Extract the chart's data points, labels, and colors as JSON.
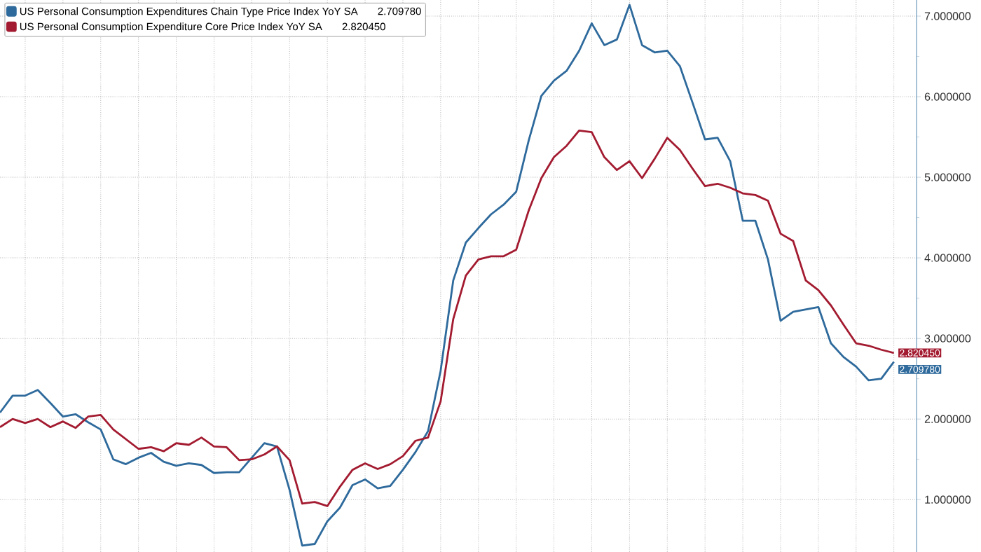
{
  "chart_data": {
    "type": "line",
    "categories": [
      null,
      null,
      null,
      null,
      null,
      null,
      null,
      null,
      null,
      null,
      null,
      null,
      null,
      null,
      null,
      null,
      null,
      null,
      null,
      null,
      null,
      null,
      null,
      null,
      null,
      null,
      null,
      null,
      null,
      null,
      null,
      null,
      null,
      null,
      null,
      null,
      null,
      null,
      null,
      null,
      null,
      null,
      null,
      null,
      null,
      null,
      null,
      null,
      null,
      null,
      null,
      null,
      null,
      null,
      null,
      null,
      null,
      null,
      null,
      null,
      null,
      null,
      null,
      null,
      null,
      null,
      null,
      null,
      null,
      null,
      null,
      null
    ],
    "series": [
      {
        "name": "US Personal Consumption Expenditures Chain Type Price Index YoY SA",
        "color": "#2e6a9c",
        "values": [
          2.08,
          2.29,
          2.29,
          2.36,
          2.2,
          2.03,
          2.06,
          1.96,
          1.87,
          1.5,
          1.44,
          1.52,
          1.58,
          1.47,
          1.42,
          1.45,
          1.43,
          1.33,
          1.34,
          1.34,
          1.52,
          1.7,
          1.66,
          1.12,
          0.43,
          0.45,
          0.73,
          0.9,
          1.18,
          1.25,
          1.14,
          1.17,
          1.37,
          1.59,
          1.85,
          2.6,
          3.72,
          4.19,
          4.37,
          4.54,
          4.66,
          4.82,
          5.46,
          6.01,
          6.2,
          6.32,
          6.57,
          6.91,
          6.64,
          6.71,
          7.14,
          6.64,
          6.55,
          6.57,
          6.38,
          5.93,
          5.47,
          5.49,
          5.2,
          4.46,
          4.46,
          3.98,
          3.22,
          3.33,
          3.36,
          3.39,
          2.94,
          2.77,
          2.65,
          2.48,
          2.5,
          2.70978
        ],
        "value_labels": [
          null,
          null,
          null,
          null,
          null,
          null,
          null,
          null,
          null,
          null,
          null,
          null,
          null,
          null,
          null,
          null,
          null,
          null,
          null,
          null,
          null,
          null,
          null,
          null,
          null,
          null,
          null,
          null,
          null,
          null,
          null,
          null,
          null,
          null,
          null,
          null,
          null,
          null,
          null,
          null,
          null,
          null,
          null,
          null,
          null,
          null,
          null,
          null,
          null,
          null,
          null,
          null,
          null,
          null,
          null,
          null,
          null,
          null,
          null,
          null,
          null,
          null,
          null,
          null,
          null,
          null,
          null,
          null,
          null,
          null,
          null,
          "2.709780"
        ]
      },
      {
        "name": "US Personal Consumption Expenditure Core Price Index YoY SA",
        "color": "#a31b30",
        "values": [
          1.9,
          2.0,
          1.95,
          2.0,
          1.9,
          1.97,
          1.89,
          2.03,
          2.05,
          1.87,
          1.75,
          1.63,
          1.65,
          1.6,
          1.7,
          1.68,
          1.77,
          1.66,
          1.65,
          1.49,
          1.5,
          1.56,
          1.66,
          1.49,
          0.95,
          0.97,
          0.92,
          1.16,
          1.37,
          1.45,
          1.38,
          1.44,
          1.54,
          1.73,
          1.77,
          2.22,
          3.24,
          3.78,
          3.98,
          4.02,
          4.02,
          4.1,
          4.59,
          4.99,
          5.25,
          5.39,
          5.58,
          5.56,
          5.25,
          5.09,
          5.2,
          4.99,
          5.23,
          5.49,
          5.34,
          5.11,
          4.89,
          4.92,
          4.87,
          4.8,
          4.78,
          4.71,
          4.3,
          4.21,
          3.72,
          3.6,
          3.41,
          3.17,
          2.94,
          2.91,
          2.86,
          2.82045
        ],
        "value_labels": [
          null,
          null,
          null,
          null,
          null,
          null,
          null,
          null,
          null,
          null,
          null,
          null,
          null,
          null,
          null,
          null,
          null,
          null,
          null,
          null,
          null,
          null,
          null,
          null,
          null,
          null,
          null,
          null,
          null,
          null,
          null,
          null,
          null,
          null,
          null,
          null,
          null,
          null,
          null,
          null,
          null,
          null,
          null,
          null,
          null,
          null,
          null,
          null,
          null,
          null,
          null,
          null,
          null,
          null,
          null,
          null,
          null,
          null,
          null,
          null,
          null,
          null,
          null,
          null,
          null,
          null,
          null,
          null,
          null,
          null,
          null,
          "2.820450"
        ]
      }
    ],
    "ylim": [
      0.35,
      7.2
    ],
    "yticks": [
      {
        "value": 1,
        "label": "1.000000"
      },
      {
        "value": 2,
        "label": "2.000000"
      },
      {
        "value": 3,
        "label": "3.000000"
      },
      {
        "value": 4,
        "label": "4.000000"
      },
      {
        "value": 5,
        "label": "5.000000"
      },
      {
        "value": 6,
        "label": "6.000000"
      },
      {
        "value": 7,
        "label": "7.000000"
      }
    ],
    "grid": true,
    "legend": "top left",
    "tick_labels": "y",
    "marker": "none",
    "line_style": "solid"
  }
}
